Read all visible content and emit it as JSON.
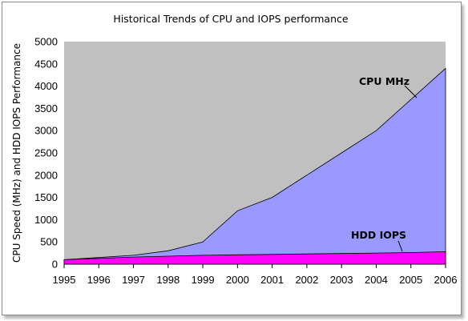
{
  "chart_data": {
    "type": "area",
    "title": "Historical Trends of CPU and IOPS performance",
    "xlabel": "",
    "ylabel": "CPU Speed (MHz) and HDD IOPS Performance",
    "x": [
      1995,
      1996,
      1997,
      1998,
      1999,
      2000,
      2001,
      2002,
      2003,
      2004,
      2005,
      2006
    ],
    "x_ticks": [
      "1995",
      "1996",
      "1997",
      "1998",
      "1999",
      "2000",
      "2001",
      "2002",
      "2003",
      "2004",
      "2005",
      "2006"
    ],
    "y_ticks": [
      "0",
      "500",
      "1000",
      "1500",
      "2000",
      "2500",
      "3000",
      "3500",
      "4000",
      "4500",
      "5000"
    ],
    "ylim": [
      0,
      5000
    ],
    "xlim": [
      1995,
      2006
    ],
    "grid": false,
    "legend": "none",
    "background_color": "#c0c0c0",
    "series": [
      {
        "name": "CPU MHz",
        "values": [
          100,
          150,
          200,
          300,
          500,
          1200,
          1500,
          2000,
          2500,
          3000,
          3700,
          4400
        ],
        "color": "#9999ff"
      },
      {
        "name": "HDD IOPS",
        "values": [
          100,
          130,
          160,
          180,
          200,
          210,
          220,
          230,
          240,
          250,
          260,
          280
        ],
        "color": "#ff00ff"
      }
    ]
  }
}
